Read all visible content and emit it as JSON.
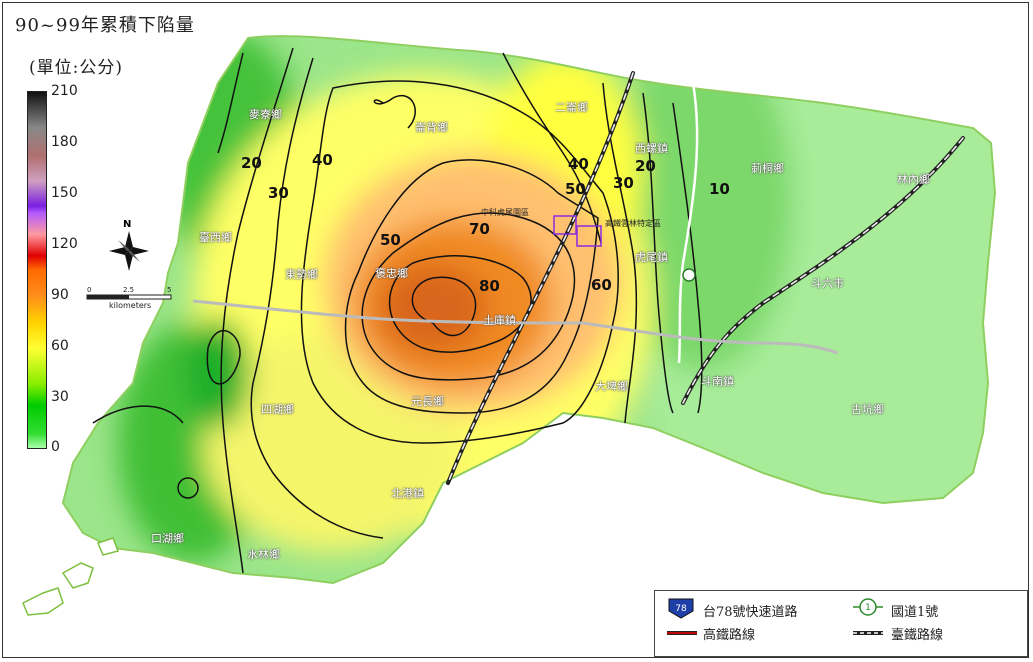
{
  "map": {
    "title": "90~99年累積下陷量",
    "unit_label": "(單位:公分)",
    "colorbar": {
      "ticks": [
        "210",
        "180",
        "150",
        "120",
        "90",
        "60",
        "30",
        "0"
      ]
    },
    "scalebar": {
      "labels": [
        "0",
        "2.5",
        "5"
      ],
      "unit": "kilometers"
    },
    "north_label": "N",
    "townships": [
      "麥寮鄉",
      "臺西鄉",
      "東勢鄉",
      "褒忠鄉",
      "崙背鄉",
      "二崙鄉",
      "西螺鎮",
      "莿桐鄉",
      "林內鄉",
      "虎尾鎮",
      "斗六市",
      "土庫鎮",
      "大埤鄉",
      "斗南鎮",
      "元長鄉",
      "四湖鄉",
      "北港鎮",
      "口湖鄉",
      "水林鄉",
      "古坑鄉"
    ],
    "sites": [
      "中科虎尾園區",
      "高鐵雲林特定區"
    ],
    "contour_labels": [
      "10",
      "20",
      "20",
      "30",
      "30",
      "40",
      "40",
      "50",
      "50",
      "60",
      "70",
      "80"
    ],
    "colors": {
      "low": "#33cc33",
      "mid": "#ffff33",
      "high": "#ff8c1a",
      "contour": "#111111",
      "border": "#7fbf3f"
    }
  },
  "legend": {
    "expressway": "台78號快速道路",
    "expressway_badge": "78",
    "freeway": "國道1號",
    "freeway_badge": "1",
    "hsr": "高鐵路線",
    "railway": "臺鐵路線"
  }
}
